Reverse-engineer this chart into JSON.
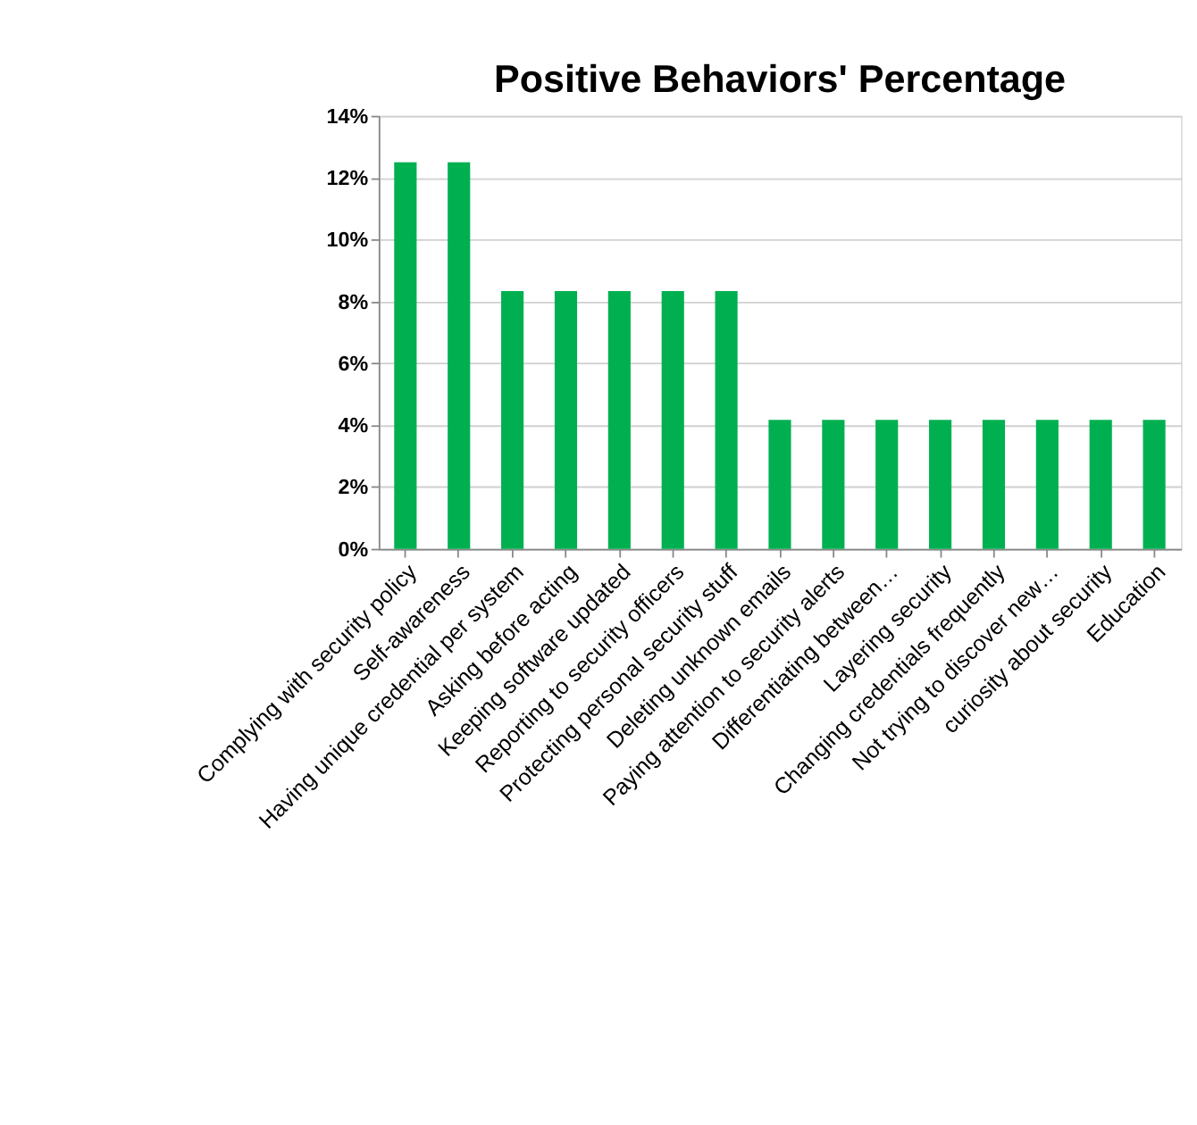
{
  "chart_data": {
    "type": "bar",
    "title": "Positive Behaviors'  Percentage",
    "categories": [
      "Complying with security policy",
      "Self-awareness",
      "Having unique credential per system",
      "Asking before acting",
      "Keeping software updated",
      "Reporting to security officers",
      "Protecting personal security stuff",
      "Deleting unknown emails",
      "Paying attention to security alerts",
      "Differentiating between…",
      "Layering security",
      "Changing credentials frequently",
      "Not trying to discover new…",
      "curiosity about security",
      "Education"
    ],
    "values": [
      12.5,
      12.5,
      8.33,
      8.33,
      8.33,
      8.33,
      8.33,
      4.17,
      4.17,
      4.17,
      4.17,
      4.17,
      4.17,
      4.17,
      4.17
    ],
    "color": "#00b050",
    "ylim": [
      0,
      14
    ],
    "yticks": [
      {
        "value": 0,
        "label": "0%"
      },
      {
        "value": 2,
        "label": "2%"
      },
      {
        "value": 4,
        "label": "4%"
      },
      {
        "value": 6,
        "label": "6%"
      },
      {
        "value": 8,
        "label": "8%"
      },
      {
        "value": 10,
        "label": "10%"
      },
      {
        "value": 12,
        "label": "12%"
      },
      {
        "value": 14,
        "label": "14%"
      }
    ],
    "grid": "y"
  }
}
